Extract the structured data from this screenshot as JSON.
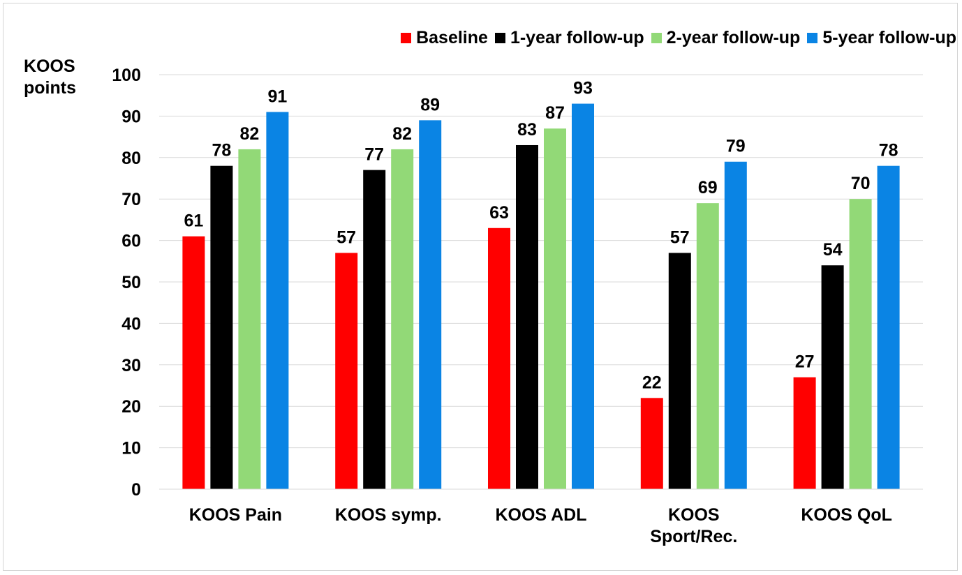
{
  "chart_data": {
    "type": "bar",
    "ylabel": "KOOS points",
    "ylim": [
      0,
      100
    ],
    "yticks": [
      0,
      10,
      20,
      30,
      40,
      50,
      60,
      70,
      80,
      90,
      100
    ],
    "grid": true,
    "legend_position": "top-right",
    "categories": [
      "KOOS Pain",
      "KOOS symp.",
      "KOOS ADL",
      "KOOS Sport/Rec.",
      "KOOS QoL"
    ],
    "series": [
      {
        "name": "Baseline",
        "color": "#ff0000",
        "values": [
          61,
          57,
          63,
          22,
          27
        ]
      },
      {
        "name": "1-year follow-up",
        "color": "#000000",
        "values": [
          78,
          77,
          83,
          57,
          54
        ]
      },
      {
        "name": "2-year follow-up",
        "color": "#92d977",
        "values": [
          82,
          82,
          87,
          69,
          70
        ]
      },
      {
        "name": "5-year follow-up",
        "color": "#0a84e4",
        "values": [
          91,
          89,
          93,
          79,
          78
        ]
      }
    ]
  }
}
